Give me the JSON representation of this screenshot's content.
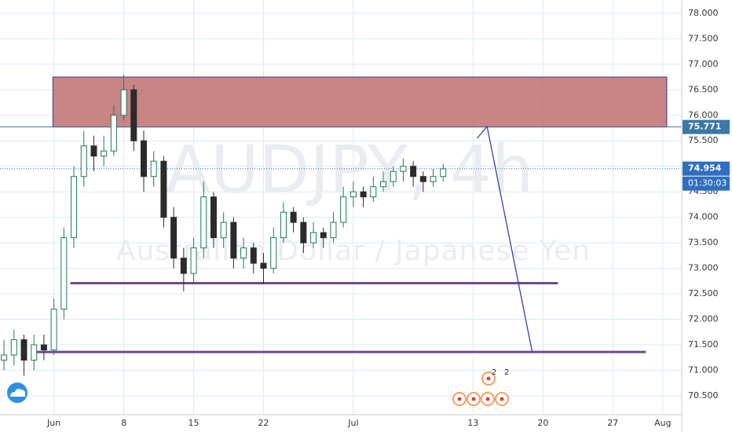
{
  "chart_data": {
    "type": "candlestick",
    "title": "AUDJPY, 4h",
    "subtitle": "Australian Dollar / Japanese Yen",
    "x": [
      -5,
      -4,
      -3,
      -2,
      -1,
      0,
      1,
      2,
      3,
      4,
      5,
      6,
      7,
      8,
      9,
      10,
      11,
      12,
      13,
      14,
      15,
      16,
      17,
      18,
      19,
      20,
      21,
      22,
      23,
      24,
      25,
      26,
      27,
      28,
      29,
      30,
      31,
      32,
      33,
      34,
      35,
      36,
      37,
      38,
      39
    ],
    "open": [
      71.2,
      71.3,
      71.6,
      71.2,
      71.5,
      71.4,
      72.2,
      73.6,
      74.8,
      75.4,
      75.2,
      75.3,
      76.0,
      76.5,
      75.5,
      74.8,
      75.1,
      74.0,
      73.2,
      72.9,
      73.4,
      74.4,
      73.6,
      73.9,
      73.2,
      73.4,
      73.1,
      73.0,
      73.6,
      74.1,
      73.9,
      73.5,
      73.7,
      73.6,
      73.9,
      74.4,
      74.5,
      74.4,
      74.6,
      74.7,
      74.9,
      75.0,
      74.8,
      74.7,
      74.8
    ],
    "high": [
      71.6,
      71.8,
      71.7,
      71.7,
      71.7,
      72.4,
      73.8,
      75.0,
      75.7,
      75.6,
      75.6,
      76.2,
      76.8,
      76.6,
      75.7,
      75.3,
      75.2,
      74.2,
      73.4,
      73.6,
      74.7,
      74.5,
      74.1,
      74.0,
      73.6,
      73.5,
      73.3,
      73.8,
      74.3,
      74.2,
      74.0,
      73.9,
      73.8,
      74.1,
      74.6,
      74.7,
      74.6,
      74.8,
      74.9,
      75.0,
      75.15,
      75.1,
      74.9,
      74.95,
      75.05
    ],
    "low": [
      71.0,
      71.1,
      70.9,
      71.0,
      71.2,
      71.3,
      72.0,
      73.4,
      74.6,
      74.9,
      75.0,
      75.2,
      75.9,
      75.3,
      74.5,
      74.6,
      73.8,
      73.0,
      72.55,
      72.7,
      73.2,
      73.4,
      73.4,
      73.0,
      73.0,
      72.9,
      72.7,
      72.9,
      73.5,
      73.7,
      73.3,
      73.4,
      73.4,
      73.5,
      73.8,
      74.2,
      74.2,
      74.3,
      74.5,
      74.6,
      74.7,
      74.6,
      74.5,
      74.6,
      74.7
    ],
    "close": [
      71.3,
      71.6,
      71.2,
      71.5,
      71.4,
      72.2,
      73.6,
      74.8,
      75.4,
      75.2,
      75.3,
      76.0,
      76.5,
      75.5,
      74.8,
      75.1,
      74.0,
      73.2,
      72.9,
      73.4,
      74.4,
      73.6,
      73.9,
      73.2,
      73.4,
      73.1,
      73.0,
      73.6,
      74.1,
      73.9,
      73.5,
      73.7,
      73.6,
      73.9,
      74.4,
      74.5,
      74.4,
      74.6,
      74.7,
      74.9,
      75.0,
      74.8,
      74.7,
      74.8,
      74.95
    ],
    "up_color": "#1f7a5e",
    "down_color": "#2b2b2b",
    "xlim": [
      -5.4,
      62.9
    ],
    "ylim": [
      70.13,
      78.26
    ],
    "xticks": [
      {
        "value": 0,
        "label": "Jun"
      },
      {
        "value": 7,
        "label": "8"
      },
      {
        "value": 14,
        "label": "15"
      },
      {
        "value": 21,
        "label": "22"
      },
      {
        "value": 30,
        "label": "Jul"
      },
      {
        "value": 42,
        "label": "13"
      },
      {
        "value": 49,
        "label": "20"
      },
      {
        "value": 56,
        "label": "27"
      },
      {
        "value": 61,
        "label": "Aug"
      }
    ],
    "yticks": [
      {
        "value": 70.5,
        "label": "70.500"
      },
      {
        "value": 71,
        "label": "71.000"
      },
      {
        "value": 71.5,
        "label": "71.500"
      },
      {
        "value": 72,
        "label": "72.000"
      },
      {
        "value": 72.5,
        "label": "72.500"
      },
      {
        "value": 73,
        "label": "73.000"
      },
      {
        "value": 73.5,
        "label": "73.500"
      },
      {
        "value": 74,
        "label": "74.000"
      },
      {
        "value": 74.5,
        "label": "74.500"
      },
      {
        "value": 75,
        "label": "75.000"
      },
      {
        "value": 75.5,
        "label": "75.500"
      },
      {
        "value": 76,
        "label": "76.000"
      },
      {
        "value": 76.5,
        "label": "76.500"
      },
      {
        "value": 77,
        "label": "77.000"
      },
      {
        "value": 77.5,
        "label": "77.500"
      },
      {
        "value": 78,
        "label": "78.000"
      }
    ],
    "grid": true,
    "zone": {
      "x": [
        -0.1,
        61.4
      ],
      "y": [
        75.771,
        76.75
      ],
      "color": "#c0706e"
    },
    "levels": [
      {
        "y": 75.771,
        "x": [
          -5.4,
          62.9
        ],
        "color": "#3b78a8",
        "width": 1
      },
      {
        "y": 72.71,
        "x": [
          1.65,
          50.5
        ],
        "color": "#6a4a8c",
        "width": 3
      },
      {
        "y": 71.36,
        "x": [
          -1.9,
          59.3
        ],
        "color": "#6a4a8c",
        "width": 3
      }
    ],
    "projection": {
      "x": [
        42.4,
        43.4,
        47.9
      ],
      "y": [
        75.55,
        75.78,
        71.38
      ],
      "color": "#3a3ac0"
    },
    "level_label": 75.771,
    "last_price": 74.954,
    "countdown": "01:30:03",
    "event_counts": [
      2,
      2
    ]
  }
}
